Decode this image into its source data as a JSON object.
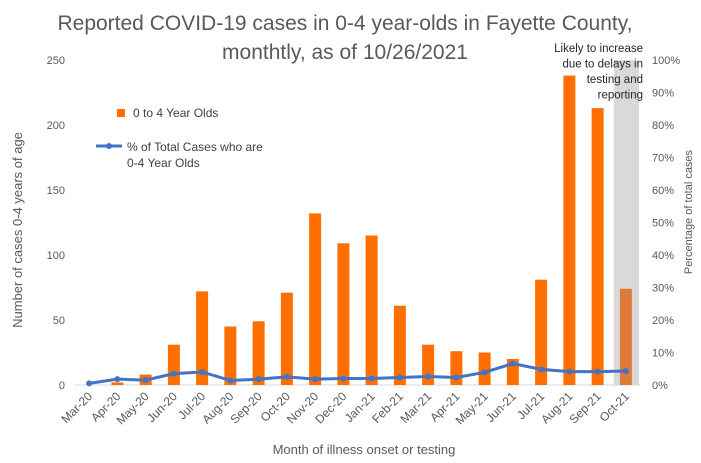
{
  "chart_data": {
    "type": "bar",
    "title_line1": "Reported COVID-19 cases in 0-4 year-olds in Fayette County,",
    "title_line2": "monthtly, as of 10/26/2021",
    "xlabel": "Month of illness onset or testing",
    "ylabel": "Number of cases 0-4 years of age",
    "y2label": "Percentage of total cases",
    "categories": [
      "Mar-20",
      "Apr-20",
      "May-20",
      "Jun-20",
      "Jul-20",
      "Aug-20",
      "Sep-20",
      "Oct-20",
      "Nov-20",
      "Dec-20",
      "Jan-21",
      "Feb-21",
      "Mar-21",
      "Apr-21",
      "May-21",
      "Jun-21",
      "Jul-21",
      "Aug-21",
      "Sep-21",
      "Oct-21"
    ],
    "ylim": [
      0,
      250
    ],
    "y2lim": [
      0,
      100
    ],
    "yticks": [
      "0",
      "50",
      "100",
      "150",
      "200",
      "250"
    ],
    "y2ticks": [
      "0%",
      "10%",
      "20%",
      "30%",
      "40%",
      "50%",
      "60%",
      "70%",
      "80%",
      "90%",
      "100%"
    ],
    "series": [
      {
        "name": "0 to 4 Year Olds",
        "type": "bar",
        "axis": "left",
        "color": "#FF6F00",
        "values": [
          0,
          2,
          8,
          31,
          72,
          45,
          49,
          71,
          132,
          109,
          115,
          61,
          31,
          26,
          25,
          20,
          81,
          238,
          213,
          74
        ]
      },
      {
        "name": "% of Total Cases who are 0-4 Year Olds",
        "legend_line1": "% of Total Cases who are",
        "legend_line2": "0-4 Year Olds",
        "type": "line",
        "axis": "right",
        "color": "#4472C4",
        "values": [
          0.5,
          1.8,
          1.5,
          3.5,
          4.0,
          1.4,
          1.8,
          2.5,
          1.8,
          2.0,
          2.0,
          2.3,
          2.6,
          2.3,
          3.9,
          6.6,
          4.8,
          4.1,
          4.1,
          4.3
        ]
      }
    ],
    "shaded_region": {
      "category": "Oct-21",
      "color": "#D9D9D9",
      "annotation": [
        "Likely to increase",
        "due to delays in",
        "testing and",
        "reporting"
      ]
    },
    "legend_position": "upper-left",
    "grid": false
  }
}
